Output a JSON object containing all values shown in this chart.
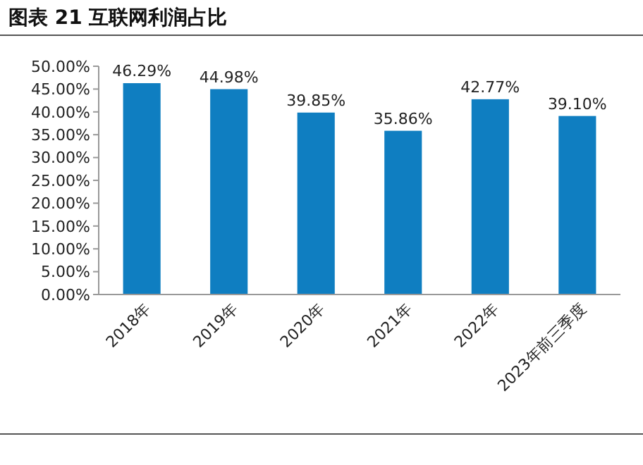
{
  "chart_data": {
    "type": "bar",
    "title": "图表 21 互联网利润占比",
    "categories": [
      "2018年",
      "2019年",
      "2020年",
      "2021年",
      "2022年",
      "2023年前三季度"
    ],
    "values": [
      46.29,
      44.98,
      39.85,
      35.86,
      42.77,
      39.1
    ],
    "value_labels": [
      "46.29%",
      "44.98%",
      "39.85%",
      "35.86%",
      "42.77%",
      "39.10%"
    ],
    "color": "#0f7ec1",
    "ylim": [
      0,
      50
    ],
    "yticks": [
      {
        "value": 0,
        "label": "0.00%"
      },
      {
        "value": 5,
        "label": "5.00%"
      },
      {
        "value": 10,
        "label": "10.00%"
      },
      {
        "value": 15,
        "label": "15.00%"
      },
      {
        "value": 20,
        "label": "20.00%"
      },
      {
        "value": 25,
        "label": "25.00%"
      },
      {
        "value": 30,
        "label": "30.00%"
      },
      {
        "value": 35,
        "label": "35.00%"
      },
      {
        "value": 40,
        "label": "40.00%"
      },
      {
        "value": 45,
        "label": "45.00%"
      },
      {
        "value": 50,
        "label": "50.00%"
      }
    ],
    "grid": false
  }
}
